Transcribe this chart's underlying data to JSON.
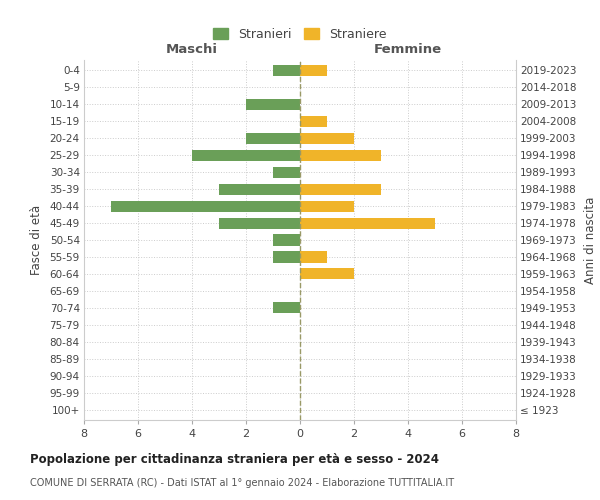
{
  "age_groups": [
    "100+",
    "95-99",
    "90-94",
    "85-89",
    "80-84",
    "75-79",
    "70-74",
    "65-69",
    "60-64",
    "55-59",
    "50-54",
    "45-49",
    "40-44",
    "35-39",
    "30-34",
    "25-29",
    "20-24",
    "15-19",
    "10-14",
    "5-9",
    "0-4"
  ],
  "birth_years": [
    "≤ 1923",
    "1924-1928",
    "1929-1933",
    "1934-1938",
    "1939-1943",
    "1944-1948",
    "1949-1953",
    "1954-1958",
    "1959-1963",
    "1964-1968",
    "1969-1973",
    "1974-1978",
    "1979-1983",
    "1984-1988",
    "1989-1993",
    "1994-1998",
    "1999-2003",
    "2004-2008",
    "2009-2013",
    "2014-2018",
    "2019-2023"
  ],
  "maschi": [
    0,
    0,
    0,
    0,
    0,
    0,
    1,
    0,
    0,
    1,
    1,
    3,
    7,
    3,
    1,
    4,
    2,
    0,
    2,
    0,
    1
  ],
  "femmine": [
    0,
    0,
    0,
    0,
    0,
    0,
    0,
    0,
    2,
    1,
    0,
    5,
    2,
    3,
    0,
    3,
    2,
    1,
    0,
    0,
    1
  ],
  "color_maschi": "#6a9f58",
  "color_femmine": "#f0b429",
  "grid_color": "#cccccc",
  "zeroline_color": "#999966",
  "title": "Popolazione per cittadinanza straniera per età e sesso - 2024",
  "subtitle": "COMUNE DI SERRATA (RC) - Dati ISTAT al 1° gennaio 2024 - Elaborazione TUTTITALIA.IT",
  "ylabel_left": "Fasce di età",
  "ylabel_right": "Anni di nascita",
  "label_maschi": "Maschi",
  "label_femmine": "Femmine",
  "legend_maschi": "Stranieri",
  "legend_femmine": "Straniere",
  "xlim": 8,
  "bar_height": 0.65
}
